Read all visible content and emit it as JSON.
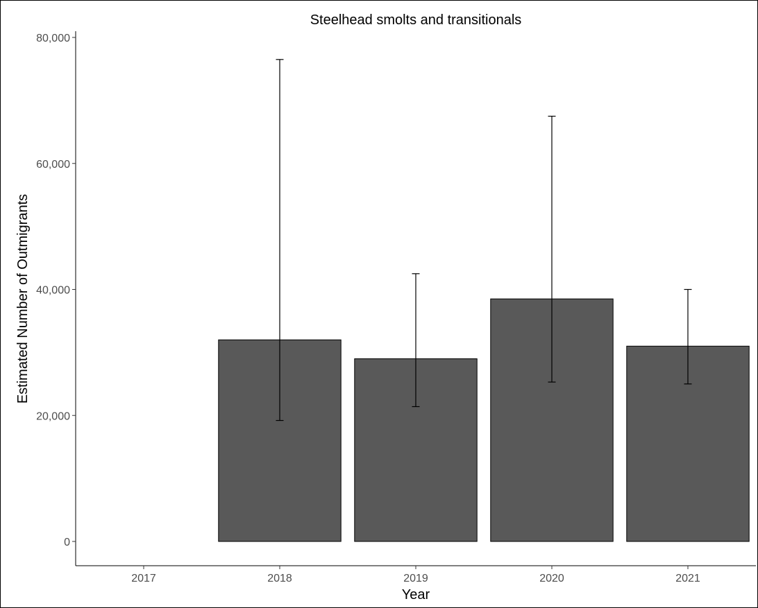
{
  "chart_data": {
    "type": "bar",
    "title": "Steelhead smolts and transitionals",
    "xlabel": "Year",
    "ylabel": "Estimated Number of Outmigrants",
    "categories": [
      "2017",
      "2018",
      "2019",
      "2020",
      "2021"
    ],
    "values": [
      0,
      32000,
      29000,
      38500,
      31000
    ],
    "error_bars": [
      null,
      [
        19200,
        76500
      ],
      [
        21400,
        42500
      ],
      [
        25300,
        67500
      ],
      [
        25000,
        40000
      ]
    ],
    "ylim": [
      -4000,
      81000
    ],
    "yticks": [
      0,
      20000,
      40000,
      60000,
      80000
    ],
    "ytick_labels": [
      "0",
      "20,000",
      "40,000",
      "60,000",
      "80,000"
    ],
    "grid": false,
    "bar_color": "#595959",
    "bar_outline": "#000000"
  }
}
